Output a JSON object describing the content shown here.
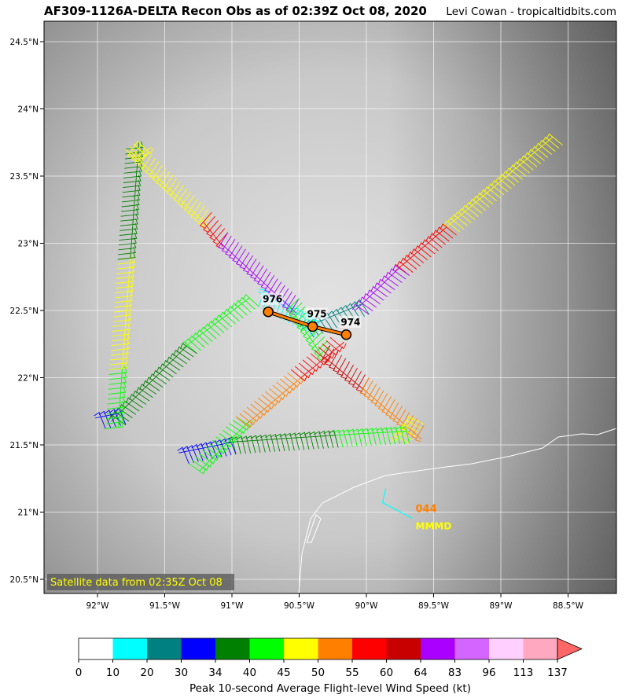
{
  "header": {
    "title": "AF309-1126A-DELTA Recon Obs as of 02:39Z Oct 08, 2020",
    "credit": "Levi Cowan - tropicaltidbits.com"
  },
  "map": {
    "lon_ticks": [
      {
        "value": -92,
        "label": "92°W"
      },
      {
        "value": -91.5,
        "label": "91.5°W"
      },
      {
        "value": -91,
        "label": "91°W"
      },
      {
        "value": -90.5,
        "label": "90.5°W"
      },
      {
        "value": -90,
        "label": "90°W"
      },
      {
        "value": -89.5,
        "label": "89.5°W"
      },
      {
        "value": -89,
        "label": "89°W"
      },
      {
        "value": -88.5,
        "label": "88.5°W"
      }
    ],
    "lat_ticks": [
      {
        "value": 24.5,
        "label": "24.5°N"
      },
      {
        "value": 24,
        "label": "24°N"
      },
      {
        "value": 23.5,
        "label": "23.5°N"
      },
      {
        "value": 23,
        "label": "23°N"
      },
      {
        "value": 22.5,
        "label": "22.5°N"
      },
      {
        "value": 22,
        "label": "22°N"
      },
      {
        "value": 21.5,
        "label": "21.5°N"
      },
      {
        "value": 21,
        "label": "21°N"
      },
      {
        "value": 20.5,
        "label": "20.5°N"
      }
    ],
    "satellite_label": "Satellite data from 02:35Z Oct 08",
    "track": [
      {
        "from": [
          -88.54,
          23.73
        ],
        "to": [
          -89.33,
          23.06
        ],
        "kt": 47
      },
      {
        "from": [
          -89.33,
          23.06
        ],
        "to": [
          -89.68,
          22.76
        ],
        "kt": 57
      },
      {
        "from": [
          -89.68,
          22.76
        ],
        "to": [
          -89.98,
          22.47
        ],
        "kt": 70
      },
      {
        "from": [
          -89.98,
          22.47
        ],
        "to": [
          -90.39,
          22.3
        ],
        "kt": 25
      },
      {
        "from": [
          -90.39,
          22.3
        ],
        "to": [
          -90.8,
          22.53
        ],
        "kt": 15
      },
      {
        "from": [
          -90.8,
          22.53
        ],
        "to": [
          -91.26,
          22.18
        ],
        "kt": 42
      },
      {
        "from": [
          -91.26,
          22.18
        ],
        "to": [
          -91.79,
          21.65
        ],
        "kt": 37
      },
      {
        "from": [
          -91.79,
          21.65
        ],
        "to": [
          -91.94,
          21.62
        ],
        "kt": 32
      },
      {
        "from": [
          -91.94,
          21.62
        ],
        "to": [
          -91.91,
          22.06
        ],
        "kt": 42
      },
      {
        "from": [
          -91.91,
          22.06
        ],
        "to": [
          -91.85,
          22.88
        ],
        "kt": 47
      },
      {
        "from": [
          -91.85,
          22.88
        ],
        "to": [
          -91.79,
          23.7
        ],
        "kt": 37
      },
      {
        "from": [
          -91.79,
          23.7
        ],
        "to": [
          -91.7,
          23.76
        ],
        "kt": 47
      },
      {
        "from": [
          -91.7,
          23.76
        ],
        "to": [
          -91.15,
          23.23
        ],
        "kt": 47
      },
      {
        "from": [
          -91.15,
          23.23
        ],
        "to": [
          -91.03,
          23.08
        ],
        "kt": 57
      },
      {
        "from": [
          -91.03,
          23.08
        ],
        "to": [
          -90.5,
          22.59
        ],
        "kt": 70
      },
      {
        "from": [
          -90.5,
          22.59
        ],
        "to": [
          -90.27,
          22.24
        ],
        "kt": 42
      },
      {
        "from": [
          -90.27,
          22.24
        ],
        "to": [
          -89.98,
          22.0
        ],
        "kt": 62
      },
      {
        "from": [
          -89.98,
          22.0
        ],
        "to": [
          -89.57,
          21.65
        ],
        "kt": 52
      },
      {
        "from": [
          -89.57,
          21.65
        ],
        "to": [
          -89.68,
          21.51
        ],
        "kt": 47
      },
      {
        "from": [
          -89.68,
          21.51
        ],
        "to": [
          -90.21,
          21.48
        ],
        "kt": 42
      },
      {
        "from": [
          -90.21,
          21.48
        ],
        "to": [
          -90.97,
          21.43
        ],
        "kt": 37
      },
      {
        "from": [
          -90.97,
          21.43
        ],
        "to": [
          -91.32,
          21.36
        ],
        "kt": 32
      },
      {
        "from": [
          -91.32,
          21.36
        ],
        "to": [
          -90.97,
          21.71
        ],
        "kt": 42
      },
      {
        "from": [
          -90.97,
          21.71
        ],
        "to": [
          -90.56,
          22.06
        ],
        "kt": 52
      },
      {
        "from": [
          -90.56,
          22.06
        ],
        "to": [
          -90.27,
          22.3
        ],
        "kt": 57
      }
    ],
    "center_fixes": [
      {
        "lon": -90.73,
        "lat": 22.49,
        "pressure": "976"
      },
      {
        "lon": -90.4,
        "lat": 22.38,
        "pressure": "975"
      },
      {
        "lon": -90.15,
        "lat": 22.32,
        "pressure": "974"
      }
    ],
    "dropsonde": {
      "lon": -89.88,
      "lat": 21.07,
      "value": "044",
      "code": "MMMD"
    }
  },
  "colorbar": {
    "bins": [
      0,
      10,
      20,
      30,
      34,
      40,
      45,
      50,
      55,
      60,
      64,
      83,
      96,
      113,
      137
    ],
    "labels": [
      "0",
      "10",
      "20",
      "30",
      "34",
      "40",
      "45",
      "50",
      "55",
      "60",
      "64",
      "83",
      "96",
      "113",
      "137"
    ],
    "colors": [
      "#ffffff",
      "#00ffff",
      "#008080",
      "#0000ff",
      "#008000",
      "#00ff00",
      "#ffff00",
      "#ff8000",
      "#ff0000",
      "#c80000",
      "#aa00ff",
      "#d466ff",
      "#ffd0ff",
      "#ffa8c0"
    ],
    "extend_color": "#ff6666",
    "label": "Peak 10-second Average Flight-level Wind Speed (kt)"
  }
}
